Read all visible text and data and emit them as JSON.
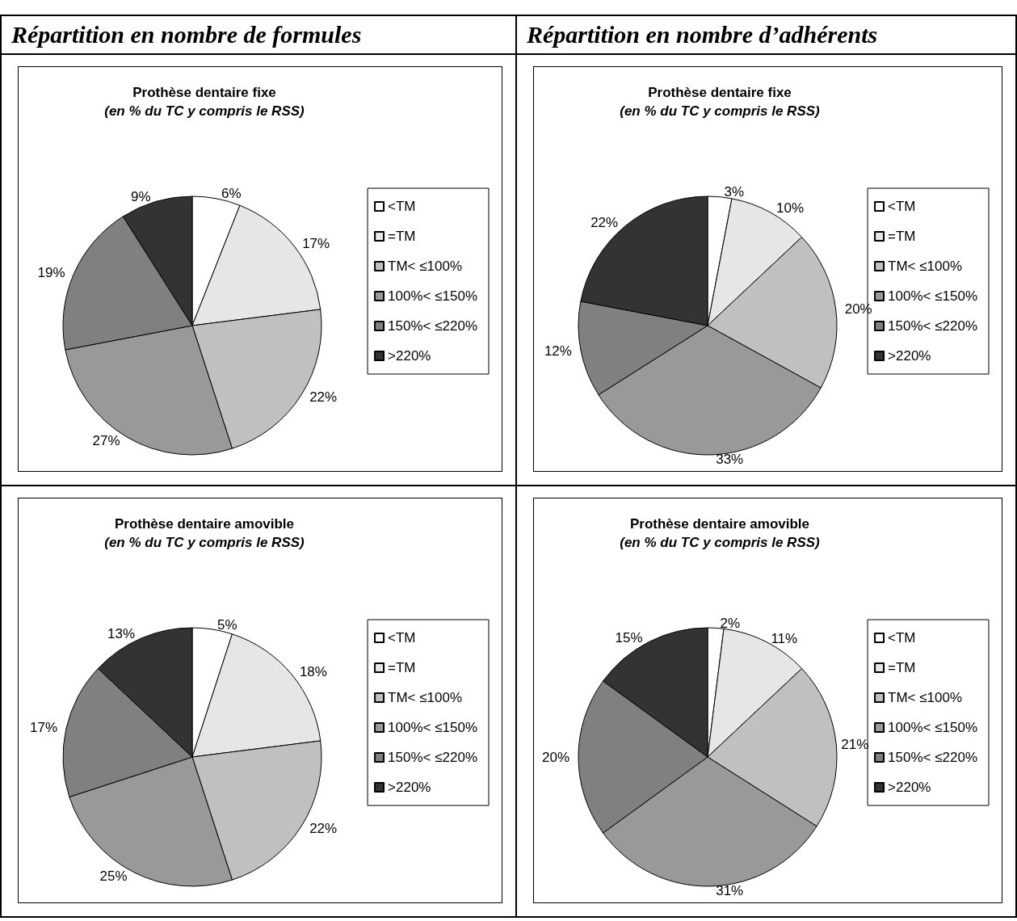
{
  "chart_data": [
    {
      "type": "pie",
      "title": "Prothèse dentaire fixe",
      "subtitle": "(en % du TC y compris le RSS)",
      "annotations": [
        "Répartition en nombre de formules"
      ],
      "legend": "right",
      "categories": [
        "<TM",
        "=TM",
        "TM< ≤100%",
        "100%< ≤150%",
        "150%< ≤220%",
        ">220%"
      ],
      "values": [
        6,
        17,
        22,
        27,
        19,
        9
      ],
      "value_labels": [
        "6%",
        "17%",
        "22%",
        "27%",
        "19%",
        "9%"
      ],
      "colors": [
        "#ffffff",
        "#e6e6e6",
        "#c0c0c0",
        "#999999",
        "#808080",
        "#333333"
      ]
    },
    {
      "type": "pie",
      "title": "Prothèse dentaire fixe",
      "subtitle": "(en % du TC y compris le RSS)",
      "annotations": [
        "Répartition en nombre d’adhérents"
      ],
      "legend": "right",
      "categories": [
        "<TM",
        "=TM",
        "TM< ≤100%",
        "100%< ≤150%",
        "150%< ≤220%",
        ">220%"
      ],
      "values": [
        3,
        10,
        20,
        33,
        12,
        22
      ],
      "value_labels": [
        "3%",
        "10%",
        "20%",
        "33%",
        "12%",
        "22%"
      ],
      "colors": [
        "#ffffff",
        "#e6e6e6",
        "#c0c0c0",
        "#999999",
        "#808080",
        "#333333"
      ]
    },
    {
      "type": "pie",
      "title": "Prothèse dentaire amovible",
      "subtitle": "(en % du TC y compris le RSS)",
      "legend": "right",
      "categories": [
        "<TM",
        "=TM",
        "TM< ≤100%",
        "100%< ≤150%",
        "150%< ≤220%",
        ">220%"
      ],
      "values": [
        5,
        18,
        22,
        25,
        17,
        13
      ],
      "value_labels": [
        "5%",
        "18%",
        "22%",
        "25%",
        "17%",
        "13%"
      ],
      "colors": [
        "#ffffff",
        "#e6e6e6",
        "#c0c0c0",
        "#999999",
        "#808080",
        "#333333"
      ]
    },
    {
      "type": "pie",
      "title": "Prothèse dentaire amovible",
      "subtitle": "(en % du TC y compris le RSS)",
      "legend": "right",
      "categories": [
        "<TM",
        "=TM",
        "TM< ≤100%",
        "100%< ≤150%",
        "150%< ≤220%",
        ">220%"
      ],
      "values": [
        2,
        11,
        21,
        31,
        20,
        15
      ],
      "value_labels": [
        "2%",
        "11%",
        "21%",
        "31%",
        "20%",
        "15%"
      ],
      "colors": [
        "#ffffff",
        "#e6e6e6",
        "#c0c0c0",
        "#999999",
        "#808080",
        "#333333"
      ]
    }
  ]
}
